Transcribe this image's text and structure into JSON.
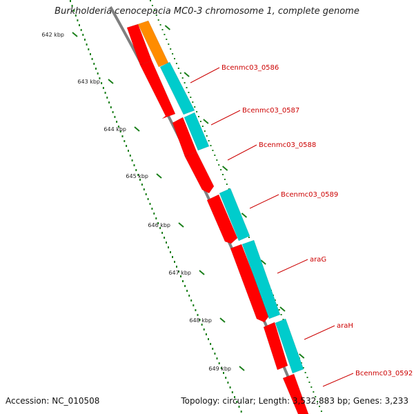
{
  "title": "Burkholderia cenocepacia MC0-3 chromosome 1, complete genome",
  "accession": "Accession: NC_010508",
  "summary": "Topology: circular; Length: 3,532,883 bp; Genes: 3,233",
  "colors": {
    "backbone": "#7f7f7f",
    "forward_cds": "#ff0000",
    "rna_or_other": "#ff8c00",
    "feature_cyan": "#00cccc",
    "tick": "#1a7f1a",
    "label_line": "#cc0000",
    "label_text": "#cc0000"
  },
  "ticks": [
    {
      "label": "642 kbp"
    },
    {
      "label": "643 kbp"
    },
    {
      "label": "644 kbp"
    },
    {
      "label": "645 kbp"
    },
    {
      "label": "646 kbp"
    },
    {
      "label": "647 kbp"
    },
    {
      "label": "648 kbp"
    },
    {
      "label": "649 kbp"
    }
  ],
  "gene_labels": [
    {
      "name": "Bcenmc03_0586"
    },
    {
      "name": "Bcenmc03_0587"
    },
    {
      "name": "Bcenmc03_0588"
    },
    {
      "name": "Bcenmc03_0589"
    },
    {
      "name": "araG"
    },
    {
      "name": "araH"
    },
    {
      "name": "Bcenmc03_0592"
    }
  ]
}
